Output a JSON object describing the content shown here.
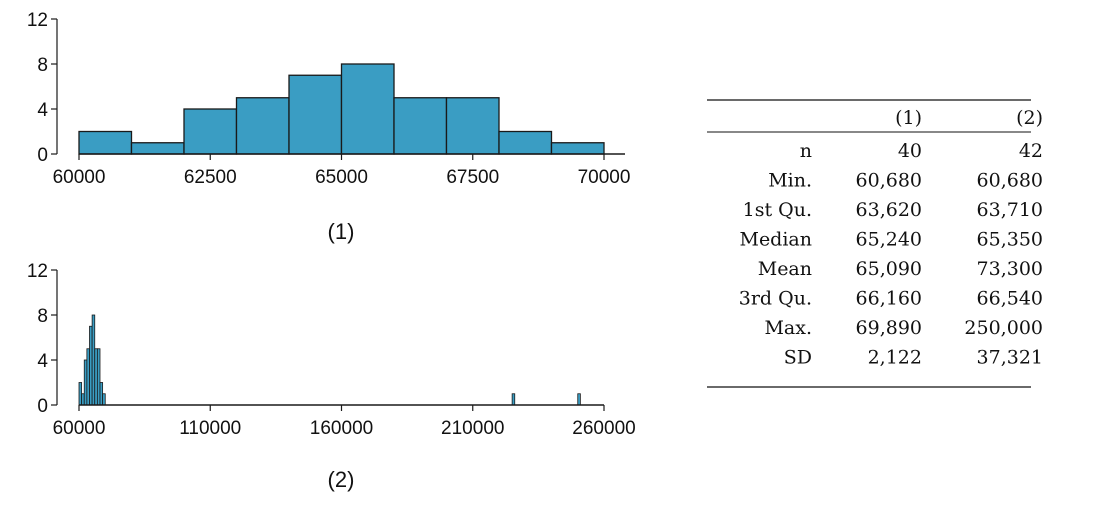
{
  "chart_data": [
    {
      "type": "bar",
      "title": "",
      "caption": "(1)",
      "xlabel": "",
      "ylabel": "",
      "bin_edges": [
        60000,
        61000,
        62000,
        63000,
        64000,
        65000,
        66000,
        67000,
        68000,
        69000,
        70000
      ],
      "values": [
        2,
        1,
        4,
        5,
        7,
        8,
        5,
        5,
        2,
        1
      ],
      "xlim": [
        60000,
        70000
      ],
      "ylim": [
        0,
        12
      ],
      "x_ticks": [
        60000,
        62500,
        65000,
        67500,
        70000
      ],
      "y_ticks": [
        0,
        4,
        8,
        12
      ],
      "grid": false,
      "bar_color": "#3a9dc3"
    },
    {
      "type": "bar",
      "title": "",
      "caption": "(2)",
      "xlabel": "",
      "ylabel": "",
      "bin_width": 1000,
      "bins": [
        {
          "start": 60000,
          "count": 2
        },
        {
          "start": 61000,
          "count": 1
        },
        {
          "start": 62000,
          "count": 4
        },
        {
          "start": 63000,
          "count": 5
        },
        {
          "start": 64000,
          "count": 7
        },
        {
          "start": 65000,
          "count": 8
        },
        {
          "start": 66000,
          "count": 5
        },
        {
          "start": 67000,
          "count": 5
        },
        {
          "start": 68000,
          "count": 2
        },
        {
          "start": 69000,
          "count": 1
        },
        {
          "start": 225000,
          "count": 1
        },
        {
          "start": 250000,
          "count": 1
        }
      ],
      "xlim": [
        60000,
        260000
      ],
      "ylim": [
        0,
        12
      ],
      "x_ticks": [
        60000,
        110000,
        160000,
        210000,
        260000
      ],
      "y_ticks": [
        0,
        4,
        8,
        12
      ],
      "grid": false,
      "bar_color": "#3a9dc3"
    },
    {
      "type": "table",
      "columns": [
        "",
        "(1)",
        "(2)"
      ],
      "rows": [
        [
          "n",
          "40",
          "42"
        ],
        [
          "Min.",
          "60,680",
          "60,680"
        ],
        [
          "1st Qu.",
          "63,620",
          "63,710"
        ],
        [
          "Median",
          "65,240",
          "65,350"
        ],
        [
          "Mean",
          "65,090",
          "73,300"
        ],
        [
          "3rd Qu.",
          "66,160",
          "66,540"
        ],
        [
          "Max.",
          "69,890",
          "250,000"
        ],
        [
          "SD",
          "2,122",
          "37,321"
        ]
      ]
    }
  ]
}
